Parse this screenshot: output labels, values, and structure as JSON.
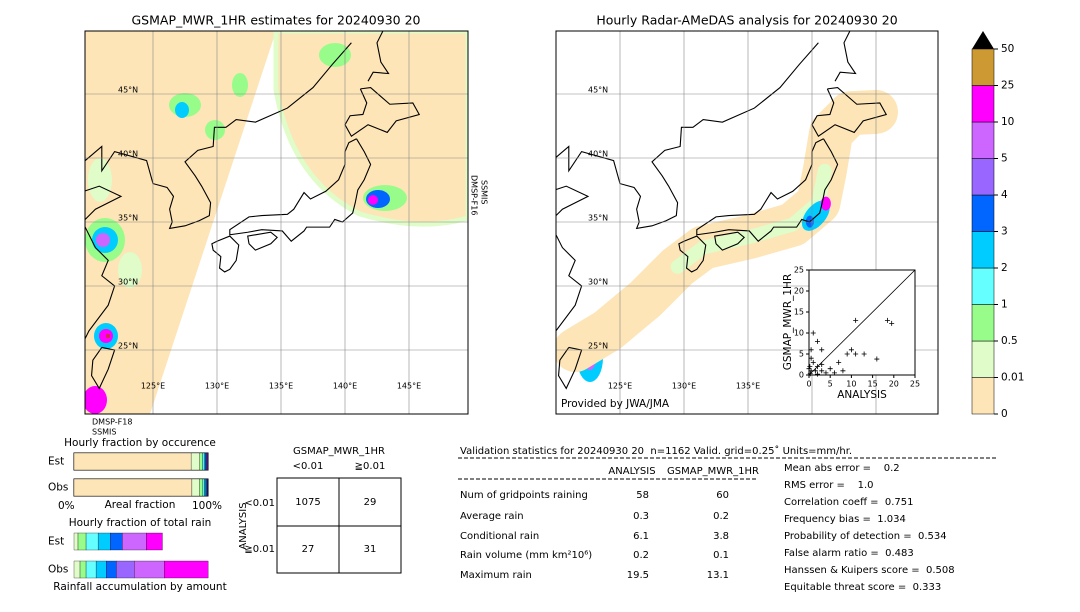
{
  "left_map": {
    "title": "GSMAP_MWR_1HR estimates for 20240930 20",
    "lat_ticks": [
      {
        "value": 45,
        "label": "45°N"
      },
      {
        "value": 40,
        "label": "40°N"
      },
      {
        "value": 35,
        "label": "35°N"
      },
      {
        "value": 30,
        "label": "30°N"
      },
      {
        "value": 25,
        "label": "25°N"
      }
    ],
    "lon_ticks": [
      {
        "value": 125,
        "label": "125°E"
      },
      {
        "value": 130,
        "label": "130°E"
      },
      {
        "value": 135,
        "label": "135°E"
      },
      {
        "value": 140,
        "label": "140°E"
      },
      {
        "value": 145,
        "label": "145°E"
      }
    ],
    "sensor_right": [
      "DMSP-F16",
      "SSMIS"
    ],
    "sensor_bottom": [
      "DMSP-F18",
      "SSMIS"
    ]
  },
  "right_map": {
    "title": "Hourly Radar-AMeDAS analysis for 20240930 20",
    "lat_ticks": [
      {
        "value": 45,
        "label": "45°N"
      },
      {
        "value": 40,
        "label": "40°N"
      },
      {
        "value": 35,
        "label": "35°N"
      },
      {
        "value": 30,
        "label": "30°N"
      },
      {
        "value": 25,
        "label": "25°N"
      }
    ],
    "lon_ticks": [
      {
        "value": 125,
        "label": "125°E"
      },
      {
        "value": 130,
        "label": "130°E"
      },
      {
        "value": 135,
        "label": "135°E"
      }
    ],
    "credit": "Provided by JWA/JMA"
  },
  "colorbar": {
    "ticks": [
      0,
      0.01,
      0.5,
      1,
      2,
      3,
      4,
      5,
      10,
      25,
      50
    ],
    "colors": [
      "#fde5b7",
      "#e0fcc8",
      "#98fc8b",
      "#66ffff",
      "#00ccff",
      "#0066ff",
      "#9966ff",
      "#cc66ff",
      "#ff00ff",
      "#cc9933"
    ],
    "over_color": "#000000"
  },
  "scatter": {
    "type": "scatter",
    "xlabel": "ANALYSIS",
    "ylabel": "GSMAP_MWR_1HR",
    "xlim": [
      0,
      25
    ],
    "ylim": [
      0,
      25
    ],
    "xticks": [
      0,
      5,
      10,
      15,
      20,
      25
    ],
    "yticks": [
      0,
      5,
      10,
      15,
      20,
      25
    ],
    "x": [
      11,
      18.5,
      19.5,
      9,
      10,
      11,
      13,
      16,
      1,
      2,
      3,
      0.5,
      1,
      2,
      0.2,
      0.5,
      1.5,
      3,
      4,
      0.3,
      2,
      6,
      7,
      8,
      5,
      0,
      0.5,
      3
    ],
    "y": [
      13,
      13,
      12.3,
      5,
      6,
      5,
      5,
      3.8,
      10,
      8,
      6,
      4,
      3,
      2,
      2,
      1,
      1,
      1,
      0.5,
      0.3,
      0.2,
      0.5,
      3,
      1,
      1.5,
      1.5,
      6,
      2.5
    ],
    "color": "#000000"
  },
  "fraction_occurrence": {
    "title": "Hourly fraction by occurence",
    "rows": [
      "Est",
      "Obs"
    ],
    "xlabel": "Areal fraction",
    "x_left": "0%",
    "x_right": "100%",
    "xlim": [
      0,
      100
    ],
    "est": [
      87.4,
      6.5,
      2.0,
      1.2,
      1.0,
      0.8,
      0.4,
      0.3,
      0.4
    ],
    "obs": [
      88.0,
      5.7,
      2.5,
      1.0,
      1.2,
      0.8,
      0.3,
      0.3,
      0.2
    ]
  },
  "fraction_total": {
    "title": "Hourly fraction of total rain",
    "rows": [
      "Est",
      "Obs"
    ],
    "xlabel": "Rainfall accumulation by amount",
    "xlim": [
      0,
      100
    ],
    "est": [
      3,
      6,
      9,
      9,
      9,
      0,
      18,
      12
    ],
    "obs": [
      4.5,
      4.5,
      7.5,
      7.5,
      7.5,
      13.4,
      22.4,
      32.8
    ]
  },
  "contingency": {
    "title": "GSMAP_MWR_1HR",
    "col_labels": [
      "<0.01",
      "≧0.01"
    ],
    "row_labels": [
      "<0.01",
      "≧0.01"
    ],
    "side_label": "ANALYSIS",
    "cells": [
      [
        1075,
        29
      ],
      [
        27,
        31
      ]
    ]
  },
  "validation": {
    "title": "Validation statistics for 20240930 20  n=1162 Valid. grid=0.25˚ Units=mm/hr.",
    "columns": [
      "ANALYSIS",
      "GSMAP_MWR_1HR"
    ],
    "rows": [
      [
        "Num of gridpoints raining",
        58,
        60
      ],
      [
        "Average rain",
        0.3,
        0.2
      ],
      [
        "Conditional rain",
        6.1,
        3.8
      ],
      [
        "Rain volume (mm km²10⁶)",
        0.2,
        0.1
      ],
      [
        "Maximum rain",
        19.5,
        13.1
      ]
    ],
    "scores": [
      "Mean abs error =    0.2",
      "RMS error =    1.0",
      "Correlation coeff =  0.751",
      "Frequency bias =  1.034",
      "Probability of detection =  0.534",
      "False alarm ratio =  0.483",
      "Hanssen & Kuipers score =  0.508",
      "Equitable threat score =  0.333"
    ]
  }
}
